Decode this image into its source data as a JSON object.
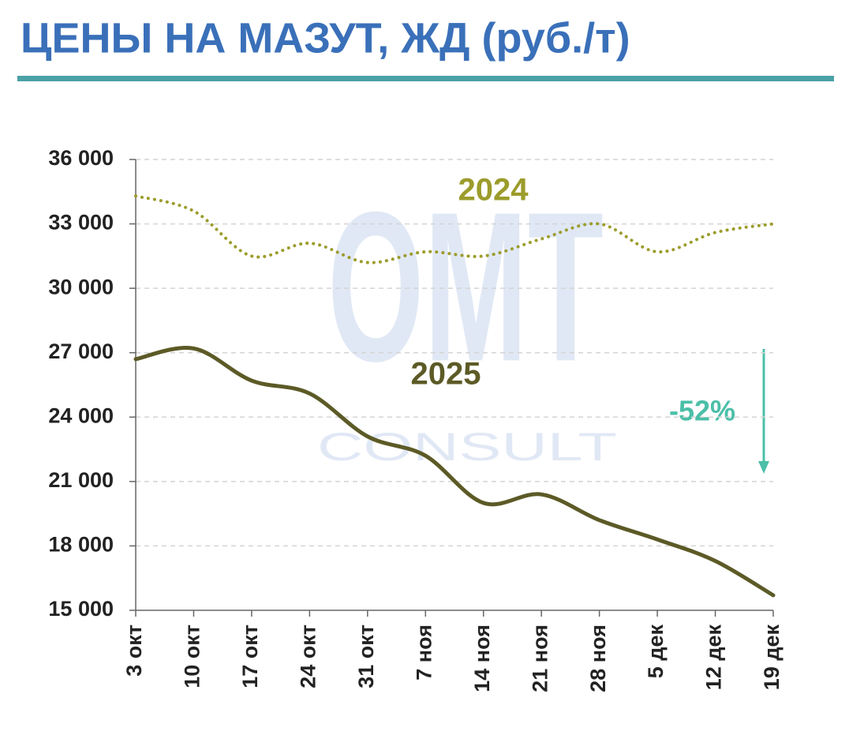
{
  "chart_data": {
    "type": "line",
    "title": "ЦЕНЫ НА МАЗУТ, ЖД (руб./т)",
    "categories": [
      "3 окт",
      "10 окт",
      "17 окт",
      "24 окт",
      "31 окт",
      "7 ноя",
      "14 ноя",
      "21 ноя",
      "28 ноя",
      "5 дек",
      "12 дек",
      "19 дек"
    ],
    "series": [
      {
        "name": "2024",
        "color": "#9c9c2c",
        "style": "dotted",
        "values": [
          34300,
          33600,
          31500,
          32100,
          31200,
          31700,
          31500,
          32300,
          33000,
          31700,
          32600,
          33000
        ]
      },
      {
        "name": "2025",
        "color": "#5c5a26",
        "style": "solid",
        "values": [
          26700,
          27200,
          25700,
          25100,
          23100,
          22200,
          20000,
          20400,
          19200,
          18300,
          17300,
          15700
        ]
      }
    ],
    "ylim": [
      15000,
      36000
    ],
    "yticks": [
      {
        "value": 15000,
        "label": "15 000"
      },
      {
        "value": 18000,
        "label": "18 000"
      },
      {
        "value": 21000,
        "label": "21 000"
      },
      {
        "value": 24000,
        "label": "24 000"
      },
      {
        "value": 27000,
        "label": "27 000"
      },
      {
        "value": 30000,
        "label": "30 000"
      },
      {
        "value": 33000,
        "label": "33 000"
      },
      {
        "value": 36000,
        "label": "36 000"
      }
    ],
    "grid": true,
    "annotation": "-52%",
    "watermark": [
      "OMT",
      "CONSULT"
    ]
  }
}
